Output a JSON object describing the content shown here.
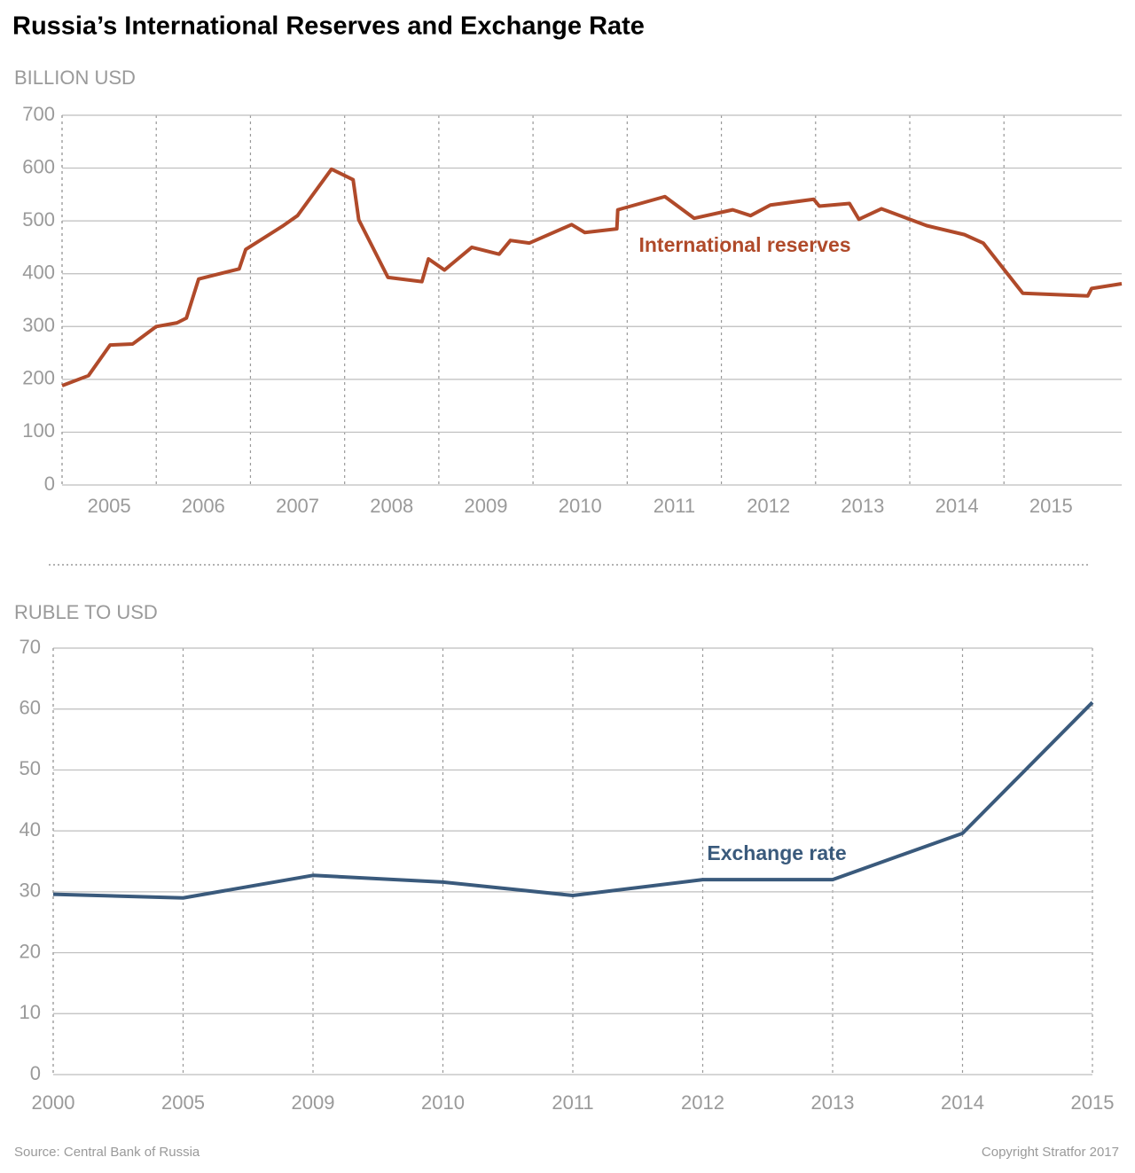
{
  "title": "Russia’s International Reserves and Exchange Rate",
  "source": "Source: Central Bank of Russia",
  "copyright": "Copyright Stratfor 2017",
  "chart_data": [
    {
      "type": "line",
      "y_label": "BILLION USD",
      "x": [
        2005.0,
        2005.28,
        2005.51,
        2005.75,
        2006.0,
        2006.22,
        2006.32,
        2006.45,
        2006.88,
        2006.95,
        2007.34,
        2007.5,
        2007.86,
        2008.09,
        2008.15,
        2008.46,
        2008.82,
        2008.89,
        2009.06,
        2009.35,
        2009.64,
        2009.76,
        2009.96,
        2010.41,
        2010.55,
        2010.89,
        2010.9,
        2011.4,
        2011.71,
        2012.12,
        2012.31,
        2012.52,
        2012.98,
        2013.04,
        2013.36,
        2013.46,
        2013.7,
        2014.18,
        2014.58,
        2014.78,
        2015.2,
        2015.89,
        2015.93,
        2016.25
      ],
      "series": [
        {
          "name": "International reserves",
          "color": "#b04a2a",
          "values": [
            188,
            207,
            265,
            267,
            300,
            307,
            316,
            390,
            409,
            446,
            490,
            510,
            598,
            578,
            502,
            393,
            385,
            428,
            407,
            450,
            437,
            463,
            458,
            493,
            478,
            485,
            521,
            546,
            505,
            521,
            510,
            530,
            541,
            528,
            533,
            503,
            523,
            491,
            474,
            458,
            363,
            358,
            372,
            381
          ]
        }
      ],
      "xlim": [
        2005,
        2016.25
      ],
      "xticks": [
        {
          "value": 2005.5,
          "label": "2005"
        },
        {
          "value": 2006.5,
          "label": "2006"
        },
        {
          "value": 2007.5,
          "label": "2007"
        },
        {
          "value": 2008.5,
          "label": "2008"
        },
        {
          "value": 2009.5,
          "label": "2009"
        },
        {
          "value": 2010.5,
          "label": "2010"
        },
        {
          "value": 2011.5,
          "label": "2011"
        },
        {
          "value": 2012.5,
          "label": "2012"
        },
        {
          "value": 2013.5,
          "label": "2013"
        },
        {
          "value": 2014.5,
          "label": "2014"
        },
        {
          "value": 2015.5,
          "label": "2015"
        }
      ],
      "ylim": [
        0,
        700
      ],
      "yticks": [
        0,
        100,
        200,
        300,
        400,
        500,
        600,
        700
      ],
      "grid": true
    },
    {
      "type": "line",
      "y_label": "RUBLE TO USD",
      "categories": [
        "2000",
        "2005",
        "2009",
        "2010",
        "2011",
        "2012",
        "2013",
        "2014",
        "2015"
      ],
      "series": [
        {
          "name": "Exchange rate",
          "color": "#3a5a7c",
          "values": [
            29.6,
            29.0,
            32.7,
            31.6,
            29.4,
            32.0,
            32.0,
            39.6,
            61.1
          ]
        }
      ],
      "ylim": [
        0,
        70
      ],
      "yticks": [
        0,
        10,
        20,
        30,
        40,
        50,
        60,
        70
      ],
      "grid": true
    }
  ]
}
